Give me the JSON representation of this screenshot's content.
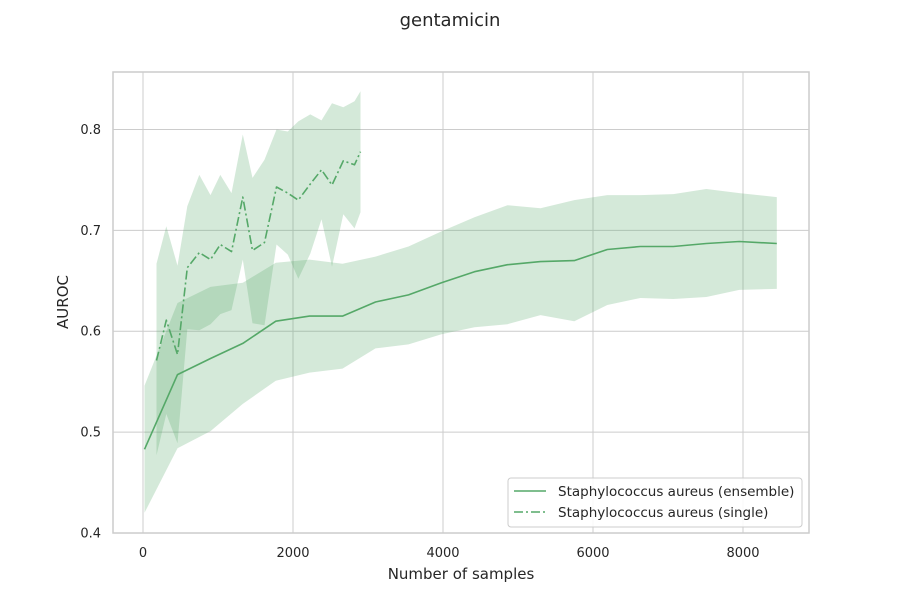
{
  "chart_data": {
    "type": "line",
    "title": "gentamicin",
    "xlabel": "Number of samples",
    "ylabel": "AUROC",
    "xlim": [
      -400,
      8880
    ],
    "ylim": [
      0.4,
      0.857
    ],
    "xticks": [
      0,
      2000,
      4000,
      6000,
      8000
    ],
    "xtick_labels": [
      "0",
      "2000",
      "4000",
      "6000",
      "8000"
    ],
    "yticks": [
      0.4,
      0.5,
      0.6,
      0.7,
      0.8
    ],
    "ytick_labels": [
      "0.4",
      "0.5",
      "0.6",
      "0.7",
      "0.8"
    ],
    "grid": true,
    "legend_position": "lower right",
    "colors": {
      "series": "#55a868",
      "band": "#55a868",
      "grid": "#cccccc",
      "spine": "#cccccc"
    },
    "series": [
      {
        "name": "Staphylococcus aureus (ensemble)",
        "style": "solid",
        "x": [
          20,
          460,
          900,
          1330,
          1770,
          2220,
          2660,
          3100,
          3540,
          3980,
          4420,
          4860,
          5300,
          5750,
          6190,
          6630,
          7070,
          7510,
          7950,
          8450
        ],
        "y": [
          0.483,
          0.557,
          0.573,
          0.588,
          0.61,
          0.615,
          0.615,
          0.629,
          0.636,
          0.648,
          0.659,
          0.666,
          0.669,
          0.67,
          0.681,
          0.684,
          0.684,
          0.687,
          0.689,
          0.687
        ],
        "upper": [
          0.546,
          0.628,
          0.644,
          0.648,
          0.668,
          0.671,
          0.667,
          0.674,
          0.684,
          0.699,
          0.713,
          0.725,
          0.722,
          0.73,
          0.735,
          0.735,
          0.736,
          0.741,
          0.737,
          0.733
        ],
        "lower": [
          0.42,
          0.484,
          0.501,
          0.528,
          0.551,
          0.559,
          0.563,
          0.583,
          0.587,
          0.597,
          0.604,
          0.607,
          0.616,
          0.61,
          0.626,
          0.633,
          0.632,
          0.634,
          0.641,
          0.642
        ]
      },
      {
        "name": "Staphylococcus aureus (single)",
        "style": "dashdot",
        "x": [
          180,
          310,
          460,
          590,
          750,
          900,
          1030,
          1180,
          1330,
          1460,
          1620,
          1780,
          1930,
          2070,
          2230,
          2380,
          2520,
          2670,
          2820,
          2900
        ],
        "y": [
          0.571,
          0.611,
          0.577,
          0.663,
          0.678,
          0.671,
          0.686,
          0.679,
          0.733,
          0.68,
          0.688,
          0.743,
          0.737,
          0.73,
          0.746,
          0.76,
          0.745,
          0.769,
          0.765,
          0.778
        ],
        "upper": [
          0.667,
          0.704,
          0.665,
          0.724,
          0.755,
          0.735,
          0.755,
          0.737,
          0.795,
          0.752,
          0.77,
          0.8,
          0.798,
          0.808,
          0.815,
          0.809,
          0.826,
          0.822,
          0.828,
          0.838
        ],
        "lower": [
          0.477,
          0.518,
          0.489,
          0.602,
          0.601,
          0.607,
          0.617,
          0.621,
          0.671,
          0.608,
          0.606,
          0.686,
          0.676,
          0.652,
          0.677,
          0.711,
          0.664,
          0.716,
          0.702,
          0.718
        ]
      }
    ]
  }
}
